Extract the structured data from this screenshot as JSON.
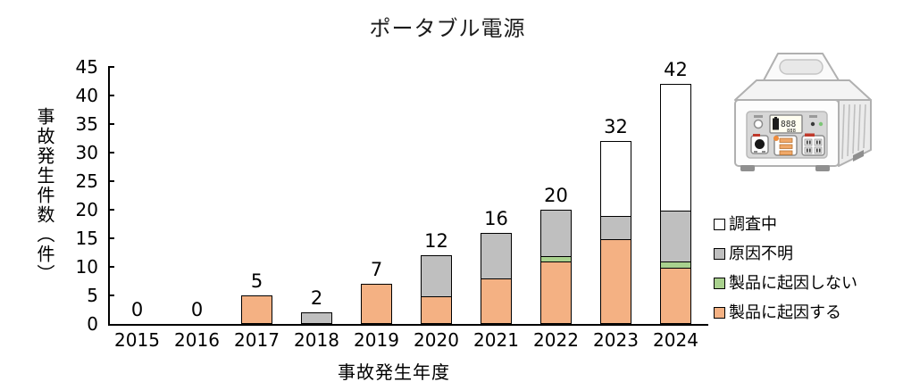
{
  "chart_data": {
    "type": "bar",
    "stacked": true,
    "title": "ポータブル電源",
    "xlabel": "事故発生年度",
    "ylabel": "事故発生件数（件）",
    "ylim": [
      0,
      45
    ],
    "ytick_step": 5,
    "yticks": [
      0,
      5,
      10,
      15,
      20,
      25,
      30,
      35,
      40,
      45
    ],
    "grid": false,
    "legend_position": "right",
    "categories": [
      "2015",
      "2016",
      "2017",
      "2018",
      "2019",
      "2020",
      "2021",
      "2022",
      "2023",
      "2024"
    ],
    "series": [
      {
        "name": "製品に起因する",
        "color": "#F4B183",
        "values": [
          0,
          0,
          5,
          0,
          7,
          5,
          8,
          11,
          15,
          10
        ]
      },
      {
        "name": "製品に起因しない",
        "color": "#A9D18E",
        "values": [
          0,
          0,
          0,
          0,
          0,
          0,
          0,
          1,
          0,
          1
        ]
      },
      {
        "name": "原因不明",
        "color": "#BFBFBF",
        "values": [
          0,
          0,
          0,
          2,
          0,
          7,
          8,
          8,
          4,
          9
        ]
      },
      {
        "name": "調査中",
        "color": "#FFFFFF",
        "values": [
          0,
          0,
          0,
          0,
          0,
          0,
          0,
          0,
          13,
          22
        ]
      }
    ],
    "totals": [
      0,
      0,
      5,
      2,
      7,
      12,
      16,
      20,
      32,
      42
    ]
  },
  "legend": {
    "items": [
      {
        "label": "調査中",
        "color": "#FFFFFF"
      },
      {
        "label": "原因不明",
        "color": "#BFBFBF"
      },
      {
        "label": "製品に起因しない",
        "color": "#A9D18E"
      },
      {
        "label": "製品に起因する",
        "color": "#F4B183"
      }
    ]
  },
  "illustration": {
    "name": "portable-power-station",
    "display_text": "888",
    "display_subtext": "888"
  },
  "colors": {
    "axis": "#000000",
    "bar_border": "#000000",
    "text": "#000000"
  }
}
